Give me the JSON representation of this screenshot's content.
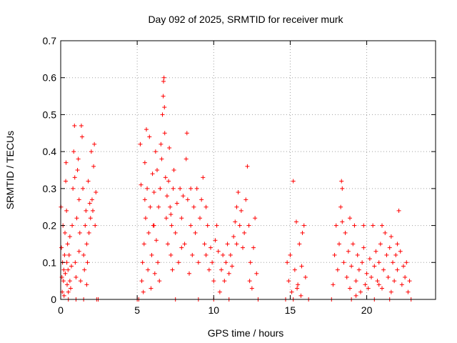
{
  "chart_data": {
    "type": "scatter",
    "title": "Day 092 of 2025, SRMTID for receiver murk",
    "xlabel": "GPS time / hours",
    "ylabel": "SRMTID / TECUs",
    "xlim": [
      0,
      24.5
    ],
    "ylim": [
      0,
      0.7
    ],
    "xticks": [
      0,
      5,
      10,
      15,
      20
    ],
    "yticks": [
      0,
      0.1,
      0.2,
      0.3,
      0.4,
      0.5,
      0.6,
      0.7
    ],
    "ytick_labels": [
      "0",
      "0.1",
      "0.2",
      "0.3",
      "0.4",
      "0.5",
      "0.6",
      "0.7"
    ],
    "grid": true,
    "legend": "none",
    "marker": "plus",
    "color": "#ff0000",
    "series": [
      {
        "values_xy": [
          [
            0.02,
            0.25
          ],
          [
            0.05,
            0.14
          ],
          [
            0.08,
            0.06
          ],
          [
            0.1,
            0.02
          ],
          [
            0.12,
            0.1
          ],
          [
            0.15,
            0.2
          ],
          [
            0.18,
            0.05
          ],
          [
            0.2,
            0.08
          ],
          [
            0.22,
            0.01
          ],
          [
            0.25,
            0.12
          ],
          [
            0.28,
            0.18
          ],
          [
            0.3,
            0.07
          ],
          [
            0.33,
            0.32
          ],
          [
            0.35,
            0.37
          ],
          [
            0.38,
            0.24
          ],
          [
            0.4,
            0.1
          ],
          [
            0.42,
            0.04
          ],
          [
            0.45,
            0.15
          ],
          [
            0.48,
            0.08
          ],
          [
            0.5,
            0.02
          ],
          [
            0.55,
            0.12
          ],
          [
            0.6,
            0.05
          ],
          [
            0.65,
            0.03
          ],
          [
            0.7,
            0.09
          ],
          [
            0.75,
            0.2
          ],
          [
            0.8,
            0.3
          ],
          [
            0.85,
            0.4
          ],
          [
            0.9,
            0.47
          ],
          [
            0.92,
            0.33
          ],
          [
            0.95,
            0.1
          ],
          [
            1.0,
            0.06
          ],
          [
            1.05,
            0.22
          ],
          [
            1.1,
            0.35
          ],
          [
            1.15,
            0.38
          ],
          [
            1.2,
            0.27
          ],
          [
            1.25,
            0.18
          ],
          [
            1.3,
            0.05
          ],
          [
            1.35,
            0.47
          ],
          [
            1.4,
            0.44
          ],
          [
            1.45,
            0.3
          ],
          [
            1.5,
            0.12
          ],
          [
            1.55,
            0.08
          ],
          [
            1.6,
            0.2
          ],
          [
            1.65,
            0.24
          ],
          [
            1.7,
            0.15
          ],
          [
            1.75,
            0.1
          ],
          [
            1.8,
            0.32
          ],
          [
            1.85,
            0.18
          ],
          [
            1.9,
            0.26
          ],
          [
            1.95,
            0.22
          ],
          [
            2.0,
            0.4
          ],
          [
            2.05,
            0.27
          ],
          [
            2.1,
            0.24
          ],
          [
            2.15,
            0.36
          ],
          [
            2.2,
            0.42
          ],
          [
            2.25,
            0.2
          ],
          [
            2.3,
            0.29
          ],
          [
            0.6,
            0.17
          ],
          [
            1.2,
            0.13
          ],
          [
            1.7,
            0.04
          ],
          [
            5.2,
            0.42
          ],
          [
            5.25,
            0.31
          ],
          [
            5.3,
            0.05
          ],
          [
            5.35,
            0.1
          ],
          [
            5.4,
            0.02
          ],
          [
            5.45,
            0.15
          ],
          [
            5.5,
            0.37
          ],
          [
            5.55,
            0.22
          ],
          [
            5.6,
            0.46
          ],
          [
            5.65,
            0.3
          ],
          [
            5.7,
            0.08
          ],
          [
            5.75,
            0.18
          ],
          [
            5.8,
            0.44
          ],
          [
            5.85,
            0.25
          ],
          [
            5.9,
            0.03
          ],
          [
            5.95,
            0.12
          ],
          [
            6.0,
            0.34
          ],
          [
            6.05,
            0.2
          ],
          [
            6.1,
            0.29
          ],
          [
            6.15,
            0.07
          ],
          [
            6.2,
            0.4
          ],
          [
            6.25,
            0.16
          ],
          [
            6.3,
            0.35
          ],
          [
            6.35,
            0.1
          ],
          [
            6.4,
            0.25
          ],
          [
            6.45,
            0.05
          ],
          [
            6.5,
            0.3
          ],
          [
            6.55,
            0.42
          ],
          [
            6.6,
            0.38
          ],
          [
            6.65,
            0.5
          ],
          [
            6.7,
            0.55
          ],
          [
            6.72,
            0.59
          ],
          [
            6.75,
            0.6
          ],
          [
            6.78,
            0.52
          ],
          [
            6.8,
            0.45
          ],
          [
            6.85,
            0.33
          ],
          [
            6.9,
            0.22
          ],
          [
            6.95,
            0.28
          ],
          [
            7.0,
            0.15
          ],
          [
            7.05,
            0.32
          ],
          [
            7.1,
            0.41
          ],
          [
            7.15,
            0.25
          ],
          [
            7.2,
            0.12
          ],
          [
            7.25,
            0.2
          ],
          [
            7.3,
            0.08
          ],
          [
            7.35,
            0.3
          ],
          [
            7.4,
            0.35
          ],
          [
            7.5,
            0.18
          ],
          [
            7.6,
            0.26
          ],
          [
            7.7,
            0.1
          ],
          [
            7.8,
            0.3
          ],
          [
            7.9,
            0.22
          ],
          [
            8.0,
            0.28
          ],
          [
            8.1,
            0.15
          ],
          [
            8.2,
            0.38
          ],
          [
            8.25,
            0.45
          ],
          [
            8.3,
            0.27
          ],
          [
            8.4,
            0.07
          ],
          [
            8.5,
            0.2
          ],
          [
            8.6,
            0.12
          ],
          [
            8.7,
            0.25
          ],
          [
            8.8,
            0.18
          ],
          [
            8.9,
            0.3
          ],
          [
            9.0,
            0.1
          ],
          [
            9.1,
            0.22
          ],
          [
            9.2,
            0.27
          ],
          [
            9.3,
            0.33
          ],
          [
            9.4,
            0.15
          ],
          [
            9.5,
            0.12
          ],
          [
            9.6,
            0.2
          ],
          [
            9.7,
            0.08
          ],
          [
            9.8,
            0.14
          ],
          [
            9.9,
            0.1
          ],
          [
            10.0,
            0.05
          ],
          [
            10.1,
            0.16
          ],
          [
            10.2,
            0.2
          ],
          [
            10.3,
            0.13
          ],
          [
            10.4,
            0.02
          ],
          [
            10.5,
            0.08
          ],
          [
            10.6,
            0.12
          ],
          [
            10.7,
            0.05
          ],
          [
            10.8,
            0.1
          ],
          [
            10.9,
            0.15
          ],
          [
            11.0,
            0.07
          ],
          [
            11.1,
            0.12
          ],
          [
            11.2,
            0.09
          ],
          [
            11.3,
            0.17
          ],
          [
            11.4,
            0.21
          ],
          [
            11.5,
            0.25
          ],
          [
            11.6,
            0.29
          ],
          [
            11.7,
            0.2
          ],
          [
            11.8,
            0.24
          ],
          [
            11.9,
            0.14
          ],
          [
            12.0,
            0.18
          ],
          [
            12.1,
            0.27
          ],
          [
            12.2,
            0.36
          ],
          [
            12.3,
            0.2
          ],
          [
            12.4,
            0.1
          ],
          [
            12.5,
            0.03
          ],
          [
            12.6,
            0.14
          ],
          [
            12.7,
            0.22
          ],
          [
            12.8,
            0.07
          ],
          [
            12.35,
            0.05
          ],
          [
            11.5,
            0.15
          ],
          [
            9.5,
            0.25
          ],
          [
            8.5,
            0.3
          ],
          [
            7.9,
            0.14
          ],
          [
            7.2,
            0.23
          ],
          [
            6.1,
            0.2
          ],
          [
            5.5,
            0.27
          ],
          [
            14.8,
            0.1
          ],
          [
            14.9,
            0.05
          ],
          [
            15.0,
            0.12
          ],
          [
            15.1,
            0.02
          ],
          [
            15.2,
            0.32
          ],
          [
            15.3,
            0.08
          ],
          [
            15.4,
            0.21
          ],
          [
            15.5,
            0.04
          ],
          [
            15.6,
            0.15
          ],
          [
            15.7,
            0.01
          ],
          [
            15.8,
            0.18
          ],
          [
            15.9,
            0.2
          ],
          [
            16.0,
            0.06
          ],
          [
            15.75,
            0.09
          ],
          [
            15.45,
            0.03
          ],
          [
            17.8,
            0.04
          ],
          [
            17.9,
            0.12
          ],
          [
            18.0,
            0.2
          ],
          [
            18.1,
            0.08
          ],
          [
            18.2,
            0.15
          ],
          [
            18.3,
            0.25
          ],
          [
            18.35,
            0.32
          ],
          [
            18.4,
            0.3
          ],
          [
            18.5,
            0.1
          ],
          [
            18.6,
            0.18
          ],
          [
            18.7,
            0.06
          ],
          [
            18.8,
            0.13
          ],
          [
            18.9,
            0.03
          ],
          [
            19.0,
            0.09
          ],
          [
            19.1,
            0.15
          ],
          [
            19.2,
            0.2
          ],
          [
            19.3,
            0.05
          ],
          [
            19.4,
            0.12
          ],
          [
            19.5,
            0.08
          ],
          [
            19.6,
            0.02
          ],
          [
            19.7,
            0.1
          ],
          [
            19.8,
            0.14
          ],
          [
            19.9,
            0.04
          ],
          [
            20.0,
            0.07
          ],
          [
            20.1,
            0.03
          ],
          [
            20.2,
            0.11
          ],
          [
            20.3,
            0.06
          ],
          [
            20.4,
            0.2
          ],
          [
            20.5,
            0.09
          ],
          [
            20.6,
            0.13
          ],
          [
            20.7,
            0.05
          ],
          [
            20.8,
            0.1
          ],
          [
            20.9,
            0.15
          ],
          [
            21.0,
            0.03
          ],
          [
            21.1,
            0.08
          ],
          [
            21.2,
            0.18
          ],
          [
            21.3,
            0.12
          ],
          [
            21.4,
            0.06
          ],
          [
            21.5,
            0.14
          ],
          [
            21.6,
            0.17
          ],
          [
            21.7,
            0.1
          ],
          [
            21.8,
            0.05
          ],
          [
            21.9,
            0.12
          ],
          [
            22.0,
            0.08
          ],
          [
            22.1,
            0.24
          ],
          [
            22.2,
            0.13
          ],
          [
            22.3,
            0.04
          ],
          [
            22.4,
            0.09
          ],
          [
            22.5,
            0.06
          ],
          [
            22.6,
            0.1
          ],
          [
            22.7,
            0.02
          ],
          [
            22.8,
            0.05
          ],
          [
            18.9,
            0.22
          ],
          [
            19.8,
            0.2
          ],
          [
            21.0,
            0.2
          ],
          [
            22.0,
            0.15
          ],
          [
            18.4,
            0.21
          ],
          [
            20.8,
            0.04
          ],
          [
            19.3,
            0.01
          ],
          [
            21.6,
            0.02
          ],
          [
            2.35,
            0.0
          ],
          [
            2.45,
            0.0
          ],
          [
            5.0,
            0.0
          ],
          [
            5.1,
            0.0
          ],
          [
            7.5,
            0.0
          ],
          [
            10.0,
            0.0
          ],
          [
            12.9,
            0.0
          ],
          [
            14.7,
            0.0
          ],
          [
            15.2,
            0.0
          ],
          [
            16.2,
            0.0
          ],
          [
            17.7,
            0.0
          ],
          [
            22.9,
            0.0
          ],
          [
            0.5,
            0.0
          ],
          [
            1.0,
            0.0
          ],
          [
            1.5,
            0.0
          ],
          [
            9.0,
            0.0
          ],
          [
            11.0,
            0.0
          ],
          [
            19.0,
            0.0
          ],
          [
            20.5,
            0.0
          ],
          [
            21.5,
            0.0
          ]
        ]
      }
    ]
  }
}
